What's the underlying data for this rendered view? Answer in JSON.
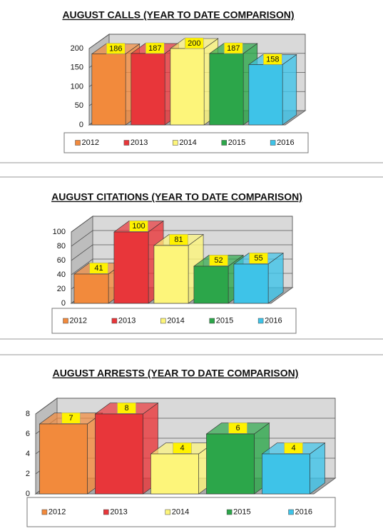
{
  "chart_data": [
    {
      "type": "bar",
      "title": "AUGUST CALLS (YEAR TO DATE COMPARISON)",
      "categories": [
        "2012",
        "2013",
        "2014",
        "2015",
        "2016"
      ],
      "values": [
        186,
        187,
        200,
        187,
        158
      ],
      "colors": [
        "#f28a3c",
        "#e8363a",
        "#fdf57a",
        "#2ca64a",
        "#3ec3e8"
      ],
      "ylim": [
        0,
        200
      ],
      "yticks": [
        0,
        50,
        100,
        150,
        200
      ],
      "grid": true
    },
    {
      "type": "bar",
      "title": "AUGUST CITATIONS (YEAR TO DATE COMPARISON)",
      "categories": [
        "2012",
        "2013",
        "2014",
        "2015",
        "2016"
      ],
      "values": [
        41,
        100,
        81,
        52,
        55
      ],
      "colors": [
        "#f28a3c",
        "#e8363a",
        "#fdf57a",
        "#2ca64a",
        "#3ec3e8"
      ],
      "ylim": [
        0,
        100
      ],
      "yticks": [
        0,
        20,
        40,
        60,
        80,
        100
      ],
      "grid": true
    },
    {
      "type": "bar",
      "title": "AUGUST ARRESTS (YEAR TO DATE COMPARISON)",
      "categories": [
        "2012",
        "2013",
        "2014",
        "2015",
        "2016"
      ],
      "values": [
        7,
        8,
        4,
        6,
        4
      ],
      "colors": [
        "#f28a3c",
        "#e8363a",
        "#fdf57a",
        "#2ca64a",
        "#3ec3e8"
      ],
      "ylim": [
        0,
        8
      ],
      "yticks": [
        0,
        2,
        4,
        6,
        8
      ],
      "grid": true
    }
  ]
}
